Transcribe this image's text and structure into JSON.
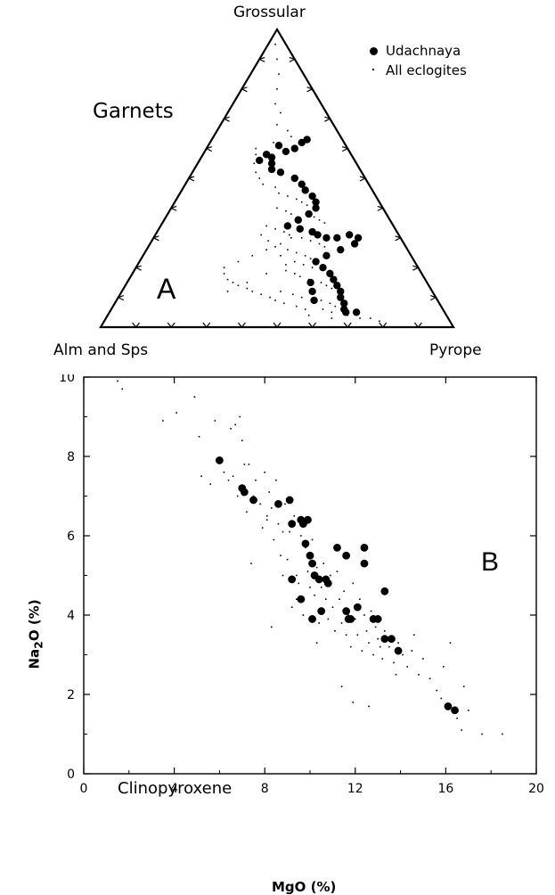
{
  "chart_data": [
    {
      "type": "ternary-scatter",
      "panel_label": "A",
      "title": "Garnets",
      "apex_labels": {
        "top": "Grossular",
        "left": "Alm and Sps",
        "right": "Pyrope"
      },
      "tick_step": 0.1,
      "legend": {
        "placement": "top-right",
        "entries": [
          {
            "label": "Udachnaya",
            "marker": "large-dot"
          },
          {
            "label": "All eclogites",
            "marker": "small-dot"
          }
        ]
      },
      "series": [
        {
          "name": "Udachnaya",
          "points_grossular_pyrope": [
            [
              0.56,
              0.17
            ],
            [
              0.58,
              0.18
            ],
            [
              0.61,
              0.2
            ],
            [
              0.59,
              0.23
            ],
            [
              0.6,
              0.25
            ],
            [
              0.62,
              0.26
            ],
            [
              0.63,
              0.27
            ],
            [
              0.57,
              0.2
            ],
            [
              0.55,
              0.21
            ],
            [
              0.53,
              0.22
            ],
            [
              0.52,
              0.25
            ],
            [
              0.5,
              0.3
            ],
            [
              0.48,
              0.33
            ],
            [
              0.46,
              0.35
            ],
            [
              0.44,
              0.38
            ],
            [
              0.42,
              0.4
            ],
            [
              0.4,
              0.41
            ],
            [
              0.38,
              0.4
            ],
            [
              0.36,
              0.38
            ],
            [
              0.34,
              0.36
            ],
            [
              0.33,
              0.4
            ],
            [
              0.32,
              0.44
            ],
            [
              0.31,
              0.46
            ],
            [
              0.3,
              0.49
            ],
            [
              0.3,
              0.52
            ],
            [
              0.31,
              0.55
            ],
            [
              0.3,
              0.58
            ],
            [
              0.28,
              0.58
            ],
            [
              0.26,
              0.55
            ],
            [
              0.24,
              0.52
            ],
            [
              0.22,
              0.5
            ],
            [
              0.2,
              0.53
            ],
            [
              0.18,
              0.56
            ],
            [
              0.16,
              0.58
            ],
            [
              0.14,
              0.6
            ],
            [
              0.12,
              0.62
            ],
            [
              0.1,
              0.63
            ],
            [
              0.08,
              0.65
            ],
            [
              0.06,
              0.66
            ],
            [
              0.05,
              0.67
            ],
            [
              0.05,
              0.7
            ],
            [
              0.09,
              0.56
            ],
            [
              0.12,
              0.54
            ],
            [
              0.15,
              0.52
            ]
          ]
        },
        {
          "name": "All eclogites",
          "points_grossular_pyrope": [
            [
              0.95,
              0.02
            ],
            [
              0.9,
              0.05
            ],
            [
              0.85,
              0.08
            ],
            [
              0.8,
              0.1
            ],
            [
              0.75,
              0.12
            ],
            [
              0.72,
              0.15
            ],
            [
              0.68,
              0.16
            ],
            [
              0.66,
              0.2
            ],
            [
              0.64,
              0.22
            ],
            [
              0.62,
              0.18
            ],
            [
              0.6,
              0.14
            ],
            [
              0.58,
              0.15
            ],
            [
              0.55,
              0.16
            ],
            [
              0.52,
              0.18
            ],
            [
              0.5,
              0.2
            ],
            [
              0.48,
              0.22
            ],
            [
              0.47,
              0.26
            ],
            [
              0.45,
              0.28
            ],
            [
              0.44,
              0.31
            ],
            [
              0.43,
              0.34
            ],
            [
              0.42,
              0.36
            ],
            [
              0.41,
              0.38
            ],
            [
              0.4,
              0.3
            ],
            [
              0.39,
              0.33
            ],
            [
              0.38,
              0.35
            ],
            [
              0.37,
              0.42
            ],
            [
              0.36,
              0.44
            ],
            [
              0.35,
              0.46
            ],
            [
              0.34,
              0.3
            ],
            [
              0.33,
              0.33
            ],
            [
              0.32,
              0.36
            ],
            [
              0.31,
              0.38
            ],
            [
              0.3,
              0.42
            ],
            [
              0.29,
              0.45
            ],
            [
              0.28,
              0.48
            ],
            [
              0.27,
              0.5
            ],
            [
              0.26,
              0.4
            ],
            [
              0.25,
              0.43
            ],
            [
              0.24,
              0.46
            ],
            [
              0.23,
              0.48
            ],
            [
              0.22,
              0.44
            ],
            [
              0.21,
              0.47
            ],
            [
              0.2,
              0.5
            ],
            [
              0.19,
              0.43
            ],
            [
              0.18,
              0.46
            ],
            [
              0.17,
              0.48
            ],
            [
              0.16,
              0.51
            ],
            [
              0.15,
              0.55
            ],
            [
              0.14,
              0.57
            ],
            [
              0.13,
              0.59
            ],
            [
              0.12,
              0.45
            ],
            [
              0.11,
              0.49
            ],
            [
              0.1,
              0.52
            ],
            [
              0.09,
              0.58
            ],
            [
              0.08,
              0.61
            ],
            [
              0.07,
              0.63
            ],
            [
              0.06,
              0.6
            ],
            [
              0.05,
              0.63
            ],
            [
              0.04,
              0.68
            ],
            [
              0.03,
              0.72
            ],
            [
              0.03,
              0.75
            ],
            [
              0.02,
              0.78
            ],
            [
              0.03,
              0.64
            ],
            [
              0.04,
              0.57
            ],
            [
              0.06,
              0.55
            ],
            [
              0.07,
              0.52
            ],
            [
              0.08,
              0.48
            ],
            [
              0.09,
              0.45
            ],
            [
              0.1,
              0.43
            ],
            [
              0.11,
              0.4
            ],
            [
              0.12,
              0.37
            ],
            [
              0.13,
              0.35
            ],
            [
              0.14,
              0.32
            ],
            [
              0.15,
              0.3
            ],
            [
              0.16,
              0.28
            ],
            [
              0.18,
              0.26
            ],
            [
              0.2,
              0.25
            ],
            [
              0.22,
              0.28
            ],
            [
              0.24,
              0.31
            ],
            [
              0.26,
              0.34
            ],
            [
              0.28,
              0.37
            ],
            [
              0.3,
              0.39
            ],
            [
              0.12,
              0.3
            ],
            [
              0.15,
              0.34
            ],
            [
              0.18,
              0.38
            ],
            [
              0.21,
              0.42
            ],
            [
              0.24,
              0.39
            ],
            [
              0.27,
              0.36
            ],
            [
              0.29,
              0.33
            ],
            [
              0.31,
              0.3
            ]
          ]
        }
      ]
    },
    {
      "type": "scatter",
      "panel_label": "B",
      "annotation": "Clinopyroxene",
      "xlabel": "MgO (%)",
      "ylabel": "Na<sub>2</sub>O (%)",
      "xlim": [
        0,
        20
      ],
      "ylim": [
        0,
        10
      ],
      "xticks": [
        0,
        4,
        8,
        12,
        16,
        20
      ],
      "yticks": [
        0,
        2,
        4,
        6,
        8,
        10
      ],
      "series": [
        {
          "name": "Udachnaya",
          "x": [
            6.0,
            7.0,
            7.1,
            7.5,
            8.6,
            9.1,
            9.2,
            9.6,
            9.7,
            9.8,
            10.0,
            10.1,
            10.2,
            10.4,
            9.2,
            9.6,
            10.1,
            10.5,
            10.7,
            10.8,
            11.2,
            11.6,
            11.6,
            11.7,
            12.1,
            12.4,
            12.4,
            12.8,
            13.0,
            13.3,
            13.3,
            13.6,
            13.9,
            16.1,
            16.4,
            9.9,
            11.8
          ],
          "y": [
            7.9,
            7.2,
            7.1,
            6.9,
            6.8,
            6.9,
            6.3,
            6.4,
            6.3,
            5.8,
            5.5,
            5.3,
            5.0,
            4.9,
            4.9,
            4.4,
            3.9,
            4.1,
            4.9,
            4.8,
            5.7,
            5.5,
            4.1,
            3.9,
            4.2,
            5.7,
            5.3,
            3.9,
            3.9,
            4.6,
            3.4,
            3.4,
            3.1,
            1.7,
            1.6,
            6.4,
            3.9
          ]
        },
        {
          "name": "All eclogites",
          "x": [
            1.5,
            1.7,
            3.5,
            4.1,
            4.9,
            5.1,
            5.2,
            5.6,
            5.8,
            6.2,
            6.4,
            6.5,
            6.6,
            6.7,
            6.9,
            7.0,
            7.1,
            7.2,
            7.3,
            7.5,
            7.6,
            7.8,
            7.9,
            8.0,
            8.1,
            8.2,
            8.3,
            8.4,
            8.5,
            8.6,
            8.7,
            8.8,
            8.9,
            9.0,
            9.1,
            9.2,
            9.3,
            9.4,
            9.5,
            9.6,
            9.7,
            9.8,
            9.9,
            10.0,
            10.1,
            10.2,
            10.3,
            10.4,
            10.5,
            10.6,
            10.7,
            10.8,
            10.9,
            11.0,
            11.1,
            11.2,
            11.3,
            11.4,
            11.5,
            11.6,
            11.7,
            11.8,
            11.9,
            12.0,
            12.1,
            12.2,
            12.3,
            12.4,
            12.5,
            12.6,
            12.7,
            12.8,
            12.9,
            13.0,
            13.1,
            13.2,
            13.3,
            13.5,
            13.7,
            13.9,
            14.1,
            14.3,
            14.5,
            14.8,
            15.0,
            15.3,
            15.6,
            15.9,
            16.2,
            16.5,
            16.8,
            17.0,
            17.6,
            18.5,
            8.3,
            8.8,
            9.4,
            10.3,
            11.4,
            12.6,
            13.8,
            6.8,
            7.4,
            8.1,
            11.9,
            14.6,
            15.8,
            16.7
          ],
          "y": [
            9.9,
            9.7,
            8.9,
            9.1,
            9.5,
            8.5,
            7.5,
            7.3,
            8.9,
            7.6,
            7.4,
            8.7,
            7.5,
            8.8,
            9.0,
            8.4,
            7.8,
            6.6,
            7.8,
            7.0,
            7.4,
            6.8,
            6.2,
            7.6,
            6.5,
            7.1,
            6.7,
            5.9,
            7.4,
            6.3,
            5.5,
            6.1,
            6.8,
            5.4,
            6.1,
            4.2,
            6.5,
            5.0,
            4.8,
            6.0,
            4.0,
            5.7,
            5.1,
            4.7,
            5.9,
            4.5,
            5.2,
            3.8,
            4.7,
            5.3,
            4.4,
            3.9,
            5.0,
            4.2,
            3.6,
            5.1,
            4.4,
            3.8,
            4.6,
            3.5,
            4.0,
            3.2,
            4.8,
            3.9,
            3.5,
            4.4,
            3.1,
            4.0,
            3.6,
            3.3,
            4.1,
            3.0,
            3.7,
            3.4,
            3.2,
            2.9,
            3.6,
            3.2,
            2.8,
            3.3,
            3.0,
            2.7,
            3.1,
            2.5,
            2.9,
            2.4,
            2.1,
            2.7,
            3.3,
            1.4,
            2.2,
            1.6,
            1.0,
            1.0,
            3.7,
            5.0,
            4.4,
            3.3,
            2.2,
            1.7,
            2.5,
            7.0,
            5.3,
            6.4,
            1.8,
            3.5,
            1.9,
            1.1
          ]
        }
      ]
    }
  ]
}
